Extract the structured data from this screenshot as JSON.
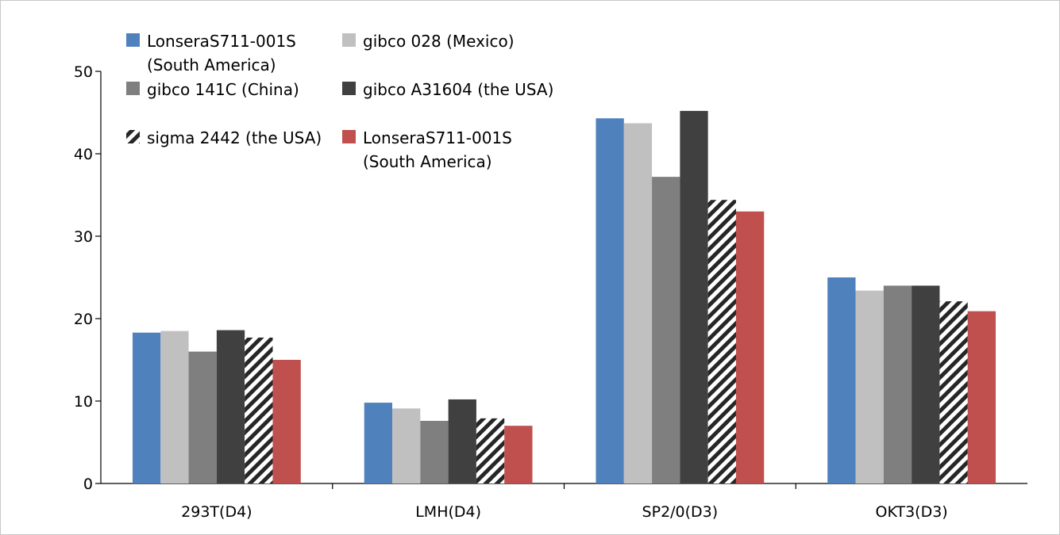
{
  "chart_data": {
    "type": "bar",
    "categories": [
      "293T(D4)",
      "LMH(D4)",
      "SP2/0(D3)",
      "OKT3(D3)"
    ],
    "ylim": [
      0,
      50
    ],
    "yticks": [
      "0",
      "10",
      "20",
      "30",
      "40",
      "50"
    ],
    "grid": false,
    "legend_position": "top-left",
    "series": [
      {
        "name": [
          "LonseraS711-001S",
          "(South America)"
        ],
        "color": "#4f81bd",
        "pattern": "solid",
        "values": [
          18.3,
          9.8,
          44.3,
          25.0
        ]
      },
      {
        "name": [
          "gibco 028 (Mexico)"
        ],
        "color": "#c0c0c0",
        "pattern": "solid",
        "values": [
          18.5,
          9.1,
          43.7,
          23.4
        ]
      },
      {
        "name": [
          "gibco 141C (China)"
        ],
        "color": "#7f7f7f",
        "pattern": "solid",
        "values": [
          16.0,
          7.6,
          37.2,
          24.0
        ]
      },
      {
        "name": [
          "gibco A31604 (the USA)"
        ],
        "color": "#404040",
        "pattern": "solid",
        "values": [
          18.6,
          10.2,
          45.2,
          24.0
        ]
      },
      {
        "name": [
          "sigma 2442 (the USA)"
        ],
        "color": "#262626",
        "pattern": "diagonal-stripes",
        "values": [
          17.7,
          7.9,
          34.4,
          22.1
        ]
      },
      {
        "name": [
          "LonseraS711-001S",
          "(South America)"
        ],
        "color": "#c0504d",
        "pattern": "solid",
        "values": [
          15.0,
          7.0,
          33.0,
          20.9
        ]
      }
    ]
  }
}
